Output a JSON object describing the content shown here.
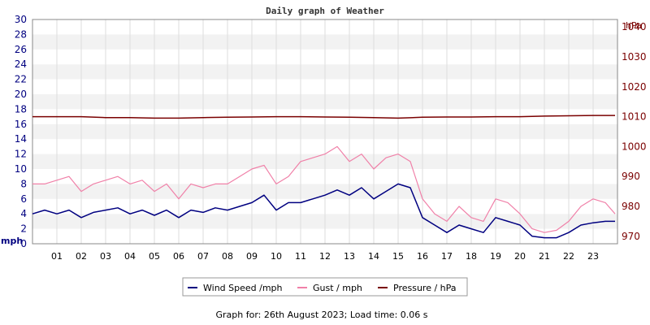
{
  "chart_data": {
    "type": "line",
    "title": "Daily graph of Weather",
    "footer": "Graph for: 26th August 2023; Load time: 0.06 s",
    "left_axis": {
      "unit": "mph",
      "min": 0,
      "max": 30,
      "ticks": [
        "0",
        "2",
        "4",
        "6",
        "8",
        "10",
        "12",
        "14",
        "16",
        "18",
        "20",
        "22",
        "24",
        "26",
        "28",
        "30"
      ]
    },
    "right_axis": {
      "unit": "hPa",
      "min": 967.5,
      "max": 1042.5,
      "ticks": [
        "970",
        "980",
        "990",
        "1000",
        "1010",
        "1020",
        "1030",
        "1040"
      ]
    },
    "x_axis": {
      "unit": "hour",
      "min": 0,
      "max": 24,
      "ticks": [
        "01",
        "02",
        "03",
        "04",
        "05",
        "06",
        "07",
        "08",
        "09",
        "10",
        "11",
        "12",
        "13",
        "14",
        "15",
        "16",
        "17",
        "18",
        "19",
        "20",
        "21",
        "22",
        "23"
      ]
    },
    "grid": true,
    "legend_position": "bottom",
    "series": [
      {
        "name": "Wind Speed /mph",
        "color": "#000080",
        "axis": "left",
        "x": [
          0,
          0.5,
          1,
          1.5,
          2,
          2.5,
          3,
          3.5,
          4,
          4.5,
          5,
          5.5,
          6,
          6.5,
          7,
          7.5,
          8,
          8.5,
          9,
          9.5,
          10,
          10.5,
          11,
          11.5,
          12,
          12.5,
          13,
          13.5,
          14,
          14.5,
          15,
          15.5,
          16,
          16.5,
          17,
          17.5,
          18,
          18.5,
          19,
          19.5,
          20,
          20.5,
          21,
          21.5,
          22,
          22.5,
          23,
          23.5,
          23.9
        ],
        "values": [
          4,
          4.5,
          4,
          4.5,
          3.5,
          4.2,
          4.5,
          4.8,
          4,
          4.5,
          3.8,
          4.5,
          3.5,
          4.5,
          4.2,
          4.8,
          4.5,
          5,
          5.5,
          6.5,
          4.5,
          5.5,
          5.5,
          6,
          6.5,
          7.2,
          6.5,
          7.5,
          6,
          7,
          8,
          7.5,
          3.5,
          2.5,
          1.5,
          2.5,
          2,
          1.5,
          3.5,
          3,
          2.5,
          1,
          0.8,
          0.8,
          1.5,
          2.5,
          2.8,
          3,
          3
        ]
      },
      {
        "name": "Gust / mph",
        "color": "#f080a8",
        "axis": "left",
        "x": [
          0,
          0.5,
          1,
          1.5,
          2,
          2.5,
          3,
          3.5,
          4,
          4.5,
          5,
          5.5,
          6,
          6.5,
          7,
          7.5,
          8,
          8.5,
          9,
          9.5,
          10,
          10.5,
          11,
          11.5,
          12,
          12.5,
          13,
          13.5,
          14,
          14.5,
          15,
          15.5,
          16,
          16.5,
          17,
          17.5,
          18,
          18.5,
          19,
          19.5,
          20,
          20.5,
          21,
          21.5,
          22,
          22.5,
          23,
          23.5,
          23.9
        ],
        "values": [
          8,
          8,
          8.5,
          9,
          7,
          8,
          8.5,
          9,
          8,
          8.5,
          7,
          8,
          6,
          8,
          7.5,
          8,
          8,
          9,
          10,
          10.5,
          8,
          9,
          11,
          11.5,
          12,
          13,
          11,
          12,
          10,
          11.5,
          12,
          11,
          6,
          4,
          3,
          5,
          3.5,
          3,
          6,
          5.5,
          4,
          2,
          1.5,
          1.8,
          3,
          5,
          6,
          5.5,
          4
        ]
      },
      {
        "name": "Pressure / hPa",
        "color": "#7a0000",
        "axis": "right",
        "x": [
          0,
          1,
          2,
          3,
          4,
          5,
          6,
          7,
          8,
          9,
          10,
          11,
          12,
          13,
          14,
          15,
          16,
          17,
          18,
          19,
          20,
          21,
          22,
          23,
          23.9
        ],
        "values": [
          1010,
          1010,
          1010,
          1009.7,
          1009.7,
          1009.5,
          1009.5,
          1009.7,
          1009.8,
          1009.9,
          1010,
          1010,
          1009.9,
          1009.8,
          1009.7,
          1009.5,
          1009.8,
          1009.9,
          1009.9,
          1010,
          1010,
          1010.2,
          1010.3,
          1010.4,
          1010.4
        ]
      }
    ]
  }
}
